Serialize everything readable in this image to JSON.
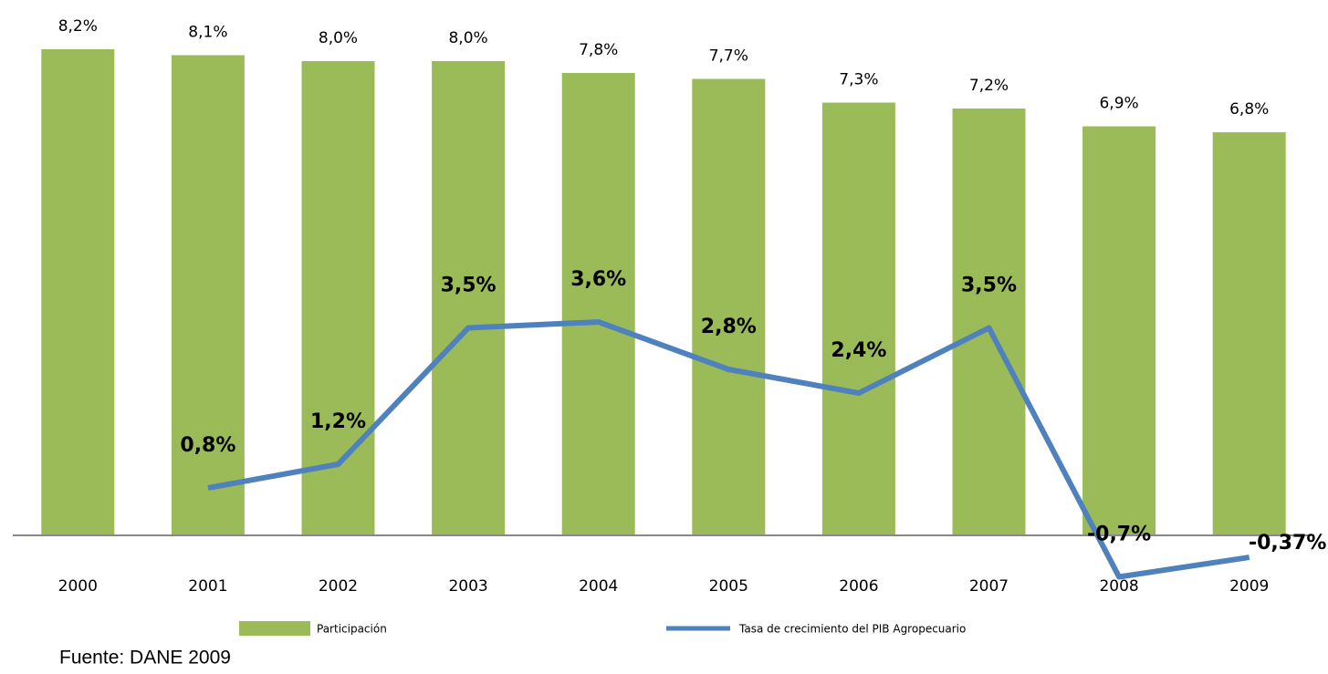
{
  "chart_data": {
    "type": "bar_line",
    "categories": [
      "2000",
      "2001",
      "2002",
      "2003",
      "2004",
      "2005",
      "2006",
      "2007",
      "2008",
      "2009"
    ],
    "series": [
      {
        "name": "Participación",
        "type": "bar",
        "color": "#9bbb59",
        "values": [
          8.2,
          8.1,
          8.0,
          8.0,
          7.8,
          7.7,
          7.3,
          7.2,
          6.9,
          6.8
        ],
        "value_labels": [
          "8,2%",
          "8,1%",
          "8,0%",
          "8,0%",
          "7,8%",
          "7,7%",
          "7,3%",
          "7,2%",
          "6,9%",
          "6,8%"
        ]
      },
      {
        "name": "Tasa de crecimiento del PIB Agropecuario",
        "type": "line",
        "color": "#4f81bd",
        "values": [
          null,
          0.8,
          1.2,
          3.5,
          3.6,
          2.8,
          2.4,
          3.5,
          -0.7,
          -0.37
        ],
        "value_labels": [
          null,
          "0,8%",
          "1,2%",
          "3,5%",
          "3,6%",
          "2,8%",
          "2,4%",
          "3,5%",
          "-0,7%",
          "-0,37%"
        ]
      }
    ],
    "ylim": [
      -1,
      8.5
    ],
    "source": "Fuente: DANE 2009"
  }
}
